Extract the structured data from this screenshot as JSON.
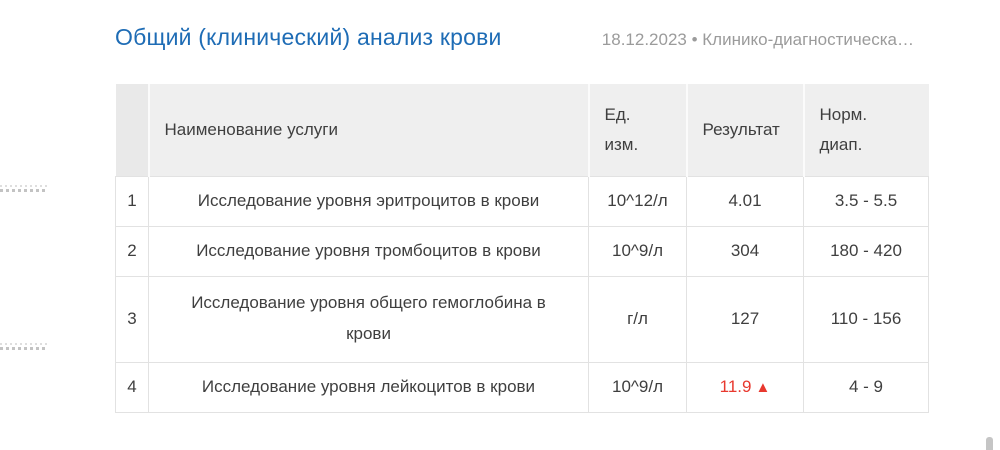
{
  "header": {
    "title": "Общий (клинический) анализ крови",
    "meta": "18.12.2023 • Клинико-диагностическа…"
  },
  "table": {
    "columns": {
      "num": "",
      "name": "Наименование услуги",
      "unit": "Ед.\nизм.",
      "result": "Результат",
      "norm": "Норм.\nдиап."
    },
    "rows": [
      {
        "num": "1",
        "name": "Исследование уровня эритроцитов в крови",
        "unit": "10^12/л",
        "result": "4.01",
        "norm": "3.5 - 5.5"
      },
      {
        "num": "2",
        "name": "Исследование уровня тромбоцитов в крови",
        "unit": "10^9/л",
        "result": "304",
        "norm": "180 - 420"
      },
      {
        "num": "3",
        "name": "Исследование уровня общего гемоглобина в крови",
        "unit": "г/л",
        "result": "127",
        "norm": "110 - 156"
      },
      {
        "num": "4",
        "name": "Исследование уровня лейкоцитов в крови",
        "unit": "10^9/л",
        "result": "11.9",
        "flag": "▲",
        "norm": "4 - 9",
        "abnormal": true
      }
    ]
  },
  "colors": {
    "title_blue": "#1e6cb5",
    "meta_gray": "#9b9b9b",
    "body_text": "#3f3f3f",
    "header_bg": "#efefef",
    "header_num_bg": "#e9e9e9",
    "cell_border": "#e2e2e2",
    "abnormal_red": "#e8382e",
    "scrollbar_gray": "#c5c5c5"
  }
}
